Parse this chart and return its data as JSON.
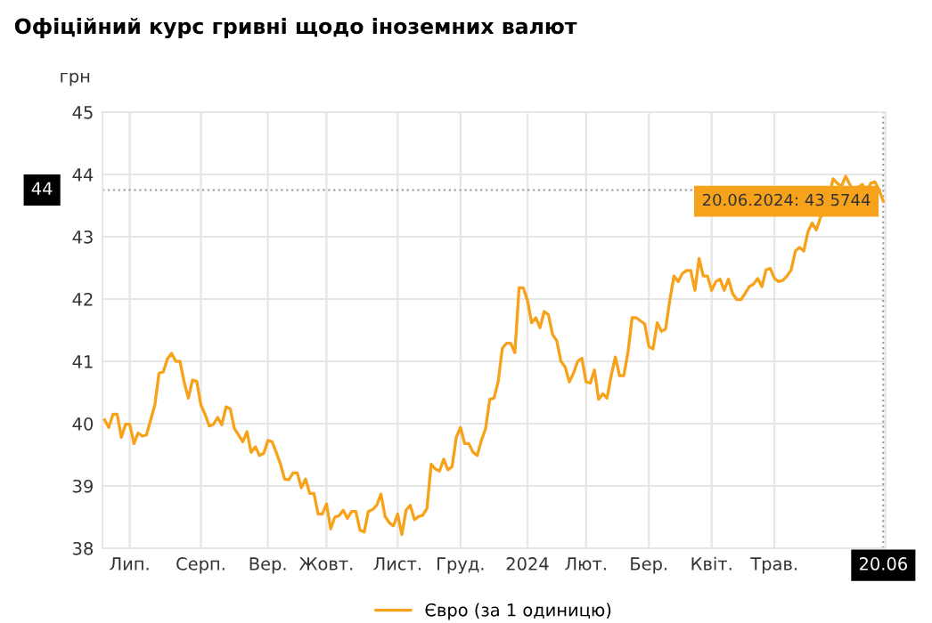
{
  "chart_data": {
    "type": "line",
    "title": "Офіційний курс гривні щодо іноземних валют",
    "ylabel": "грн",
    "categories": [
      null,
      null,
      null,
      null,
      null,
      null,
      "Лип.",
      null,
      null,
      null,
      null,
      null,
      null,
      null,
      null,
      null,
      null,
      null,
      null,
      null,
      null,
      null,
      null,
      "Серп.",
      null,
      null,
      null,
      null,
      null,
      null,
      null,
      null,
      null,
      null,
      null,
      null,
      null,
      null,
      null,
      "Вер.",
      null,
      null,
      null,
      null,
      null,
      null,
      null,
      null,
      null,
      null,
      null,
      null,
      null,
      "Жовт.",
      null,
      null,
      null,
      null,
      null,
      null,
      null,
      null,
      null,
      null,
      null,
      null,
      null,
      null,
      null,
      null,
      "Лист.",
      null,
      null,
      null,
      null,
      null,
      null,
      null,
      null,
      null,
      null,
      null,
      null,
      null,
      null,
      "Груд.",
      null,
      null,
      null,
      null,
      null,
      null,
      null,
      null,
      null,
      null,
      null,
      null,
      null,
      null,
      null,
      "2024",
      null,
      null,
      null,
      null,
      null,
      null,
      null,
      null,
      null,
      null,
      null,
      null,
      null,
      "Лют.",
      null,
      null,
      null,
      null,
      null,
      null,
      null,
      null,
      null,
      null,
      null,
      null,
      null,
      null,
      "Бер.",
      null,
      null,
      null,
      null,
      null,
      null,
      null,
      null,
      null,
      null,
      null,
      null,
      null,
      null,
      "Квіт.",
      null,
      null,
      null,
      null,
      null,
      null,
      null,
      null,
      null,
      null,
      null,
      null,
      null,
      null,
      "Трав.",
      null,
      null,
      null,
      null,
      null,
      null,
      null,
      null,
      null,
      null,
      null,
      null,
      null,
      null,
      null,
      null,
      null,
      null,
      null,
      null,
      null,
      null,
      null,
      null,
      null,
      "20.06"
    ],
    "series": [
      {
        "name": "Євро (за 1 одиницю)",
        "color": "#f7a21b",
        "values": [
          40.06,
          39.94,
          40.15,
          40.15,
          39.78,
          39.99,
          39.99,
          39.68,
          39.85,
          39.8,
          39.82,
          40.06,
          40.3,
          40.81,
          40.83,
          41.04,
          41.13,
          41.0,
          41.0,
          40.67,
          40.41,
          40.7,
          40.68,
          40.3,
          40.15,
          39.96,
          39.99,
          40.1,
          39.98,
          40.27,
          40.24,
          39.92,
          39.82,
          39.71,
          39.87,
          39.54,
          39.63,
          39.49,
          39.52,
          39.73,
          39.71,
          39.54,
          39.35,
          39.11,
          39.1,
          39.21,
          39.21,
          38.97,
          39.11,
          38.88,
          38.88,
          38.55,
          38.55,
          38.71,
          38.31,
          38.5,
          38.52,
          38.61,
          38.48,
          38.59,
          38.59,
          38.29,
          38.26,
          38.59,
          38.62,
          38.69,
          38.87,
          38.51,
          38.41,
          38.36,
          38.55,
          38.22,
          38.61,
          38.69,
          38.46,
          38.51,
          38.53,
          38.64,
          39.35,
          39.27,
          39.24,
          39.43,
          39.26,
          39.31,
          39.78,
          39.94,
          39.68,
          39.68,
          39.54,
          39.49,
          39.73,
          39.92,
          40.39,
          40.41,
          40.67,
          41.21,
          41.29,
          41.29,
          41.14,
          42.18,
          42.18,
          41.98,
          41.62,
          41.7,
          41.54,
          41.8,
          41.75,
          41.43,
          41.33,
          41.0,
          40.91,
          40.67,
          40.81,
          41.0,
          41.05,
          40.67,
          40.65,
          40.86,
          40.39,
          40.48,
          40.41,
          40.77,
          41.07,
          40.77,
          40.77,
          41.14,
          41.7,
          41.7,
          41.65,
          41.6,
          41.24,
          41.2,
          41.62,
          41.48,
          41.52,
          41.98,
          42.37,
          42.28,
          42.41,
          42.46,
          42.46,
          42.14,
          42.65,
          42.37,
          42.37,
          42.14,
          42.28,
          42.32,
          42.14,
          42.32,
          42.09,
          41.99,
          41.99,
          42.09,
          42.2,
          42.24,
          42.33,
          42.2,
          42.47,
          42.49,
          42.33,
          42.28,
          42.3,
          42.37,
          42.47,
          42.77,
          42.83,
          42.77,
          43.08,
          43.22,
          43.11,
          43.31,
          43.41,
          43.6,
          43.93,
          43.86,
          43.81,
          43.97,
          43.84,
          43.69,
          43.79,
          43.84,
          43.71,
          43.86,
          43.88,
          43.75,
          43.57
        ]
      }
    ],
    "ylim": [
      38,
      45
    ],
    "yticks": [
      38,
      39,
      40,
      41,
      42,
      43,
      44,
      45
    ],
    "grid": true,
    "legend": "bottom",
    "marker": "none",
    "line_style": "solid",
    "ref_lines": [
      {
        "axis": "y",
        "value": 43.75,
        "label": "44",
        "line_style": "dotted",
        "color": "#999999"
      },
      {
        "axis": "x",
        "value": "20.06",
        "line_style": "dotted",
        "color": "#999999"
      }
    ],
    "annotations": [
      {
        "text": "20.06.2024: 43,5744",
        "x": "20.06",
        "y": 43.57
      }
    ]
  }
}
